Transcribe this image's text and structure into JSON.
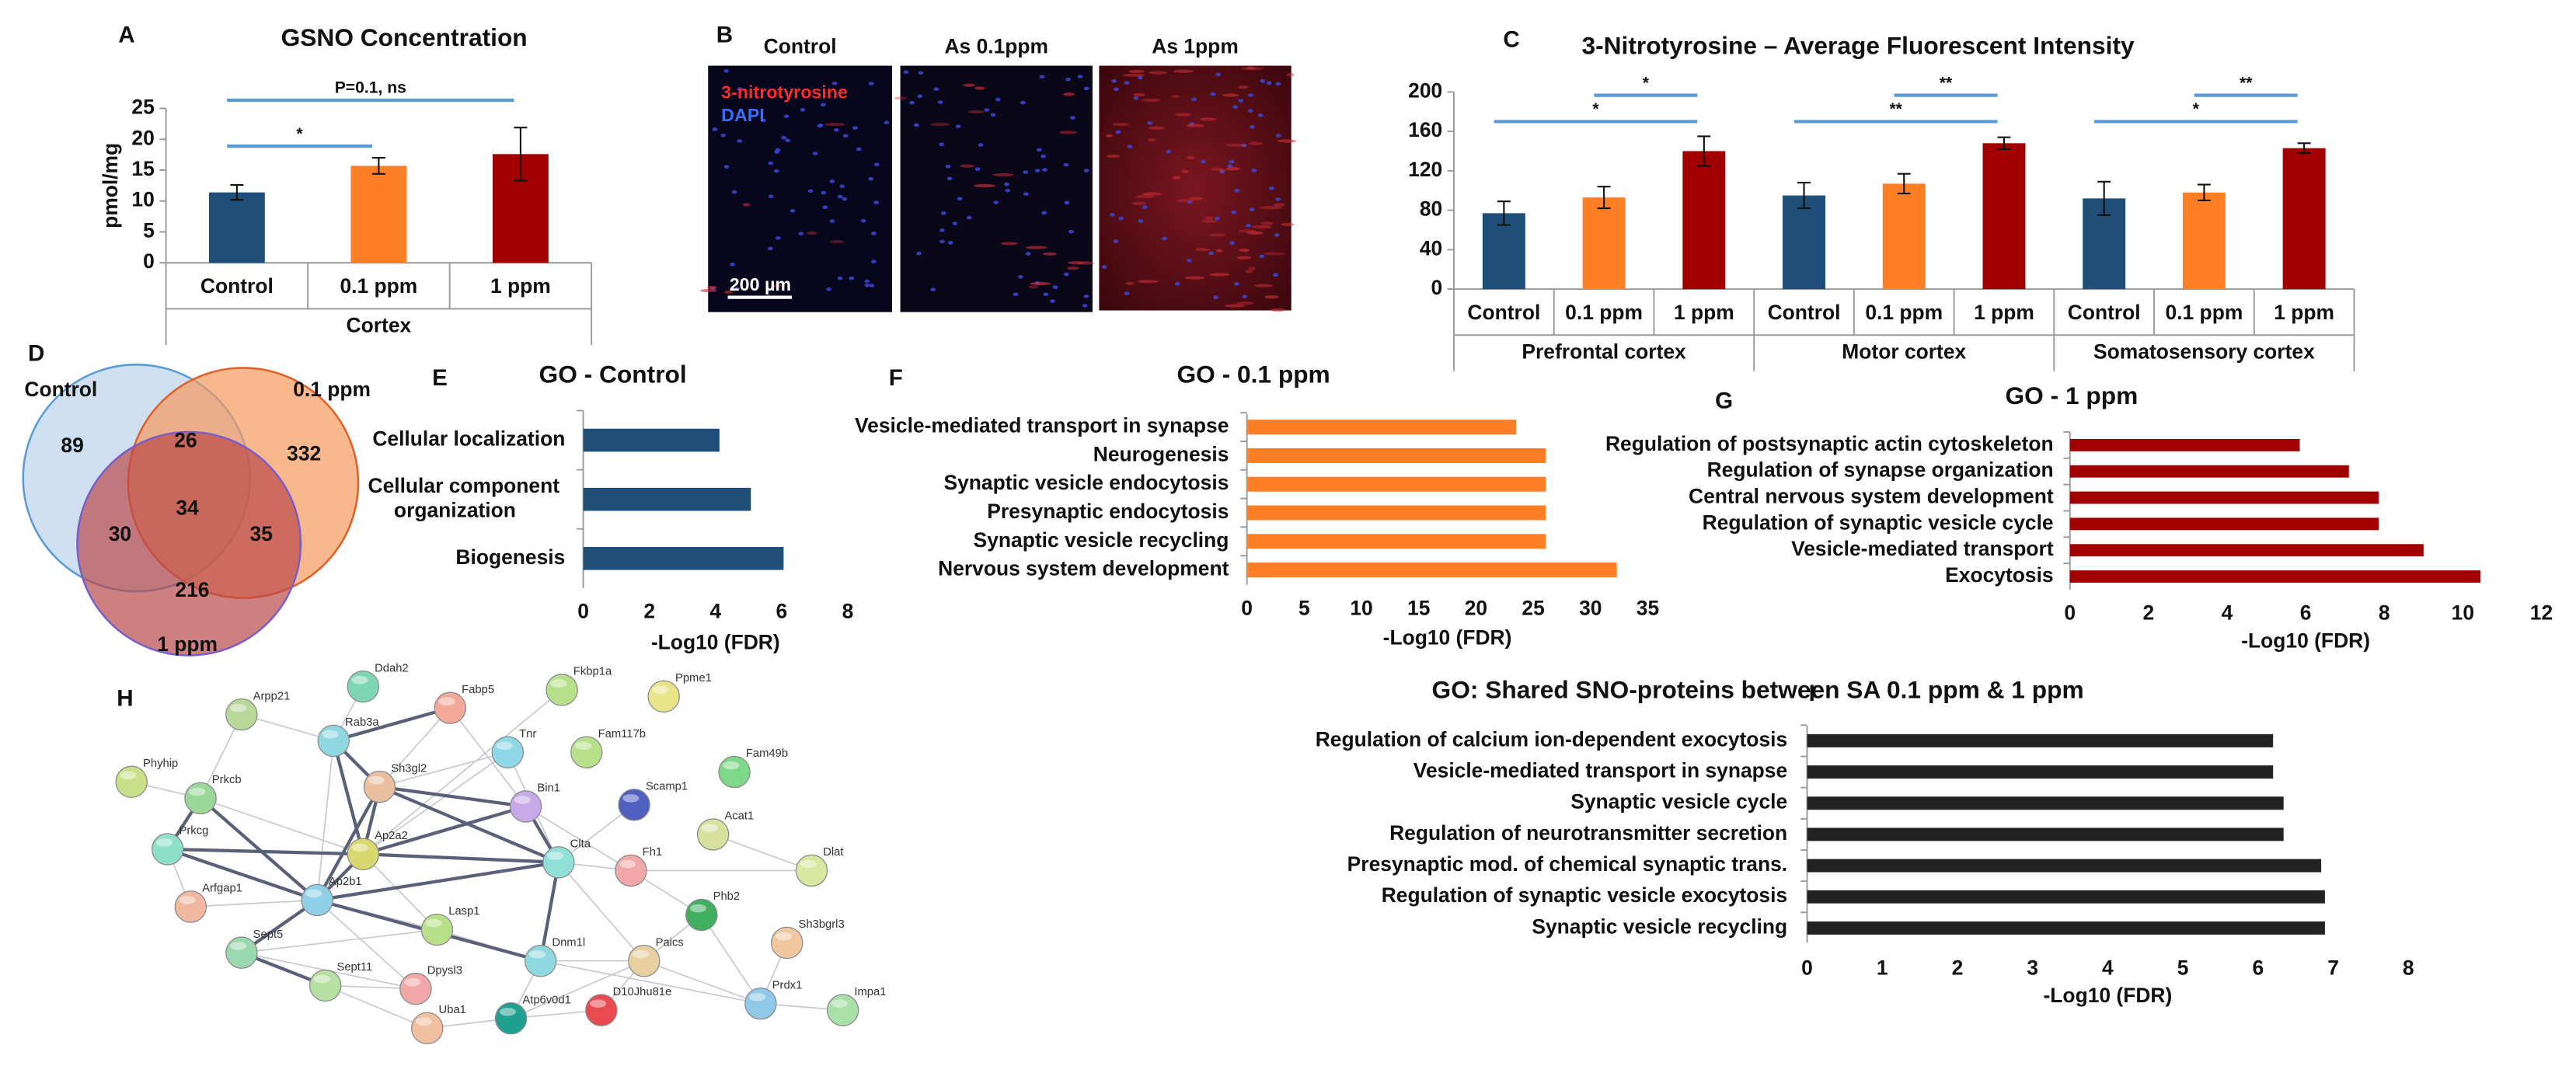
{
  "panel_labels": [
    "A",
    "B",
    "C",
    "D",
    "E",
    "F",
    "G",
    "H",
    "I"
  ],
  "chart_data": [
    {
      "type": "bar",
      "title": "GSNO Concentration",
      "y_label": "pmol/mg",
      "categories": [
        "Control",
        "0.1 ppm",
        "1 ppm"
      ],
      "group_label": "Cortex",
      "values": [
        11.4,
        15.7,
        17.6
      ],
      "errors": [
        1.2,
        1.3,
        4.3
      ],
      "colors": [
        "#1f4e79",
        "#ff7f27",
        "#a00000"
      ],
      "ylim": [
        0,
        25
      ],
      "yticks": [
        0,
        5,
        10,
        15,
        20,
        25
      ],
      "significance": [
        {
          "label": "*",
          "between": [
            0,
            1
          ]
        },
        {
          "label": "P=0.1, ns",
          "between": [
            0,
            2
          ]
        }
      ]
    },
    {
      "type": "grouped_bar",
      "title": "3-Nitrotyrosine – Average Fluorescent Intensity",
      "categories": [
        "Control",
        "0.1 ppm",
        "1 ppm"
      ],
      "colors": [
        "#1f4e79",
        "#ff7f27",
        "#a00000"
      ],
      "ylim": [
        0,
        200
      ],
      "yticks": [
        0,
        40,
        80,
        120,
        160,
        200
      ],
      "groups": [
        {
          "name": "Prefrontal cortex",
          "values": [
            77,
            93,
            140
          ],
          "errors": [
            12,
            11,
            15
          ],
          "significance": [
            {
              "label": "*",
              "between": [
                0,
                2
              ]
            },
            {
              "label": "*",
              "between": [
                1,
                2
              ]
            }
          ]
        },
        {
          "name": "Motor cortex",
          "values": [
            95,
            107,
            148
          ],
          "errors": [
            13,
            10,
            6
          ],
          "significance": [
            {
              "label": "**",
              "between": [
                0,
                2
              ]
            },
            {
              "label": "**",
              "between": [
                1,
                2
              ]
            }
          ]
        },
        {
          "name": "Somatosensory cortex",
          "values": [
            92,
            98,
            143
          ],
          "errors": [
            17,
            8,
            5
          ],
          "significance": [
            {
              "label": "*",
              "between": [
                0,
                2
              ]
            },
            {
              "label": "**",
              "between": [
                1,
                2
              ]
            }
          ]
        }
      ]
    },
    {
      "type": "hbar",
      "title": "GO - Control",
      "x_label": "-Log10 (FDR)",
      "color": "#1f4e79",
      "categories": [
        "Cellular localization",
        "Cellular component organization",
        "Biogenesis"
      ],
      "values": [
        4.12,
        5.07,
        6.06
      ],
      "xlim": [
        0,
        8
      ],
      "xticks": [
        0,
        2,
        4,
        6,
        8
      ]
    },
    {
      "type": "hbar",
      "title": "GO - 0.1 ppm",
      "x_label": "-Log10 (FDR)",
      "color": "#ff7f27",
      "categories": [
        "Vesicle-mediated transport in synapse",
        "Neurogenesis",
        "Synaptic vesicle endocytosis",
        "Presynaptic endocytosis",
        "Synaptic vesicle recycling",
        "Nervous system development"
      ],
      "values": [
        23.5,
        26.1,
        26.1,
        26.1,
        26.1,
        32.3
      ],
      "xlim": [
        0,
        35
      ],
      "xticks": [
        0,
        5,
        10,
        15,
        20,
        25,
        30,
        35
      ]
    },
    {
      "type": "hbar",
      "title": "GO - 1 ppm",
      "x_label": "-Log10 (FDR)",
      "color": "#a00000",
      "categories": [
        "Regulation of postsynaptic actin cytoskeleton",
        "Regulation of synapse organization",
        "Central nervous system development",
        "Regulation of synaptic vesicle cycle",
        "Vesicle-mediated transport",
        "Exocytosis"
      ],
      "values": [
        5.85,
        7.1,
        7.86,
        7.86,
        9.0,
        10.45
      ],
      "xlim": [
        0,
        12
      ],
      "xticks": [
        0,
        2,
        4,
        6,
        8,
        10,
        12
      ]
    },
    {
      "type": "hbar",
      "title": "GO: Shared SNO-proteins between SA 0.1 ppm & 1 ppm",
      "x_label": "-Log10 (FDR)",
      "color": "#222222",
      "categories": [
        "Regulation of calcium ion-dependent exocytosis",
        "Vesicle-mediated transport in synapse",
        "Synaptic vesicle cycle",
        "Regulation of neurotransmitter secretion",
        "Presynaptic mod. of chemical synaptic trans.",
        "Regulation of synaptic vesicle exocytosis",
        "Synaptic vesicle recycling"
      ],
      "values": [
        6.2,
        6.2,
        6.34,
        6.34,
        6.84,
        6.89,
        6.89
      ],
      "xlim": [
        0,
        8
      ],
      "xticks": [
        0,
        1,
        2,
        3,
        4,
        5,
        6,
        7,
        8
      ]
    }
  ],
  "micrograph": {
    "columns": [
      "Control",
      "As 0.1ppm",
      "As 1ppm"
    ],
    "stains": [
      "3-nitrotyrosine",
      "DAPI"
    ],
    "scale_bar": "200 µm"
  },
  "venn": {
    "sets": [
      "Control",
      "0.1 ppm",
      "1 ppm"
    ],
    "counts": [
      89,
      26,
      332,
      34,
      30,
      35,
      216
    ]
  },
  "network": {
    "nodes": [
      "Arpp21",
      "Ddah2",
      "Fabp5",
      "Fkbp1a",
      "Ppme1",
      "Rab3a",
      "Tnr",
      "Fam117b",
      "Fam49b",
      "Phyhip",
      "Prkcb",
      "Sh3gl2",
      "Bin1",
      "Scamp1",
      "Acat1",
      "Prkcg",
      "Ap2a2",
      "Clta",
      "Fh1",
      "Dlat",
      "Arfgap1",
      "Ap2b1",
      "Lasp1",
      "Phb2",
      "Sept5",
      "Dnm1l",
      "Paics",
      "Sh3bgrl3",
      "Dpysl3",
      "Sept11",
      "Prdx1",
      "Impa1",
      "Uba1",
      "Atp6v0d1",
      "D10Jhu81e"
    ]
  }
}
